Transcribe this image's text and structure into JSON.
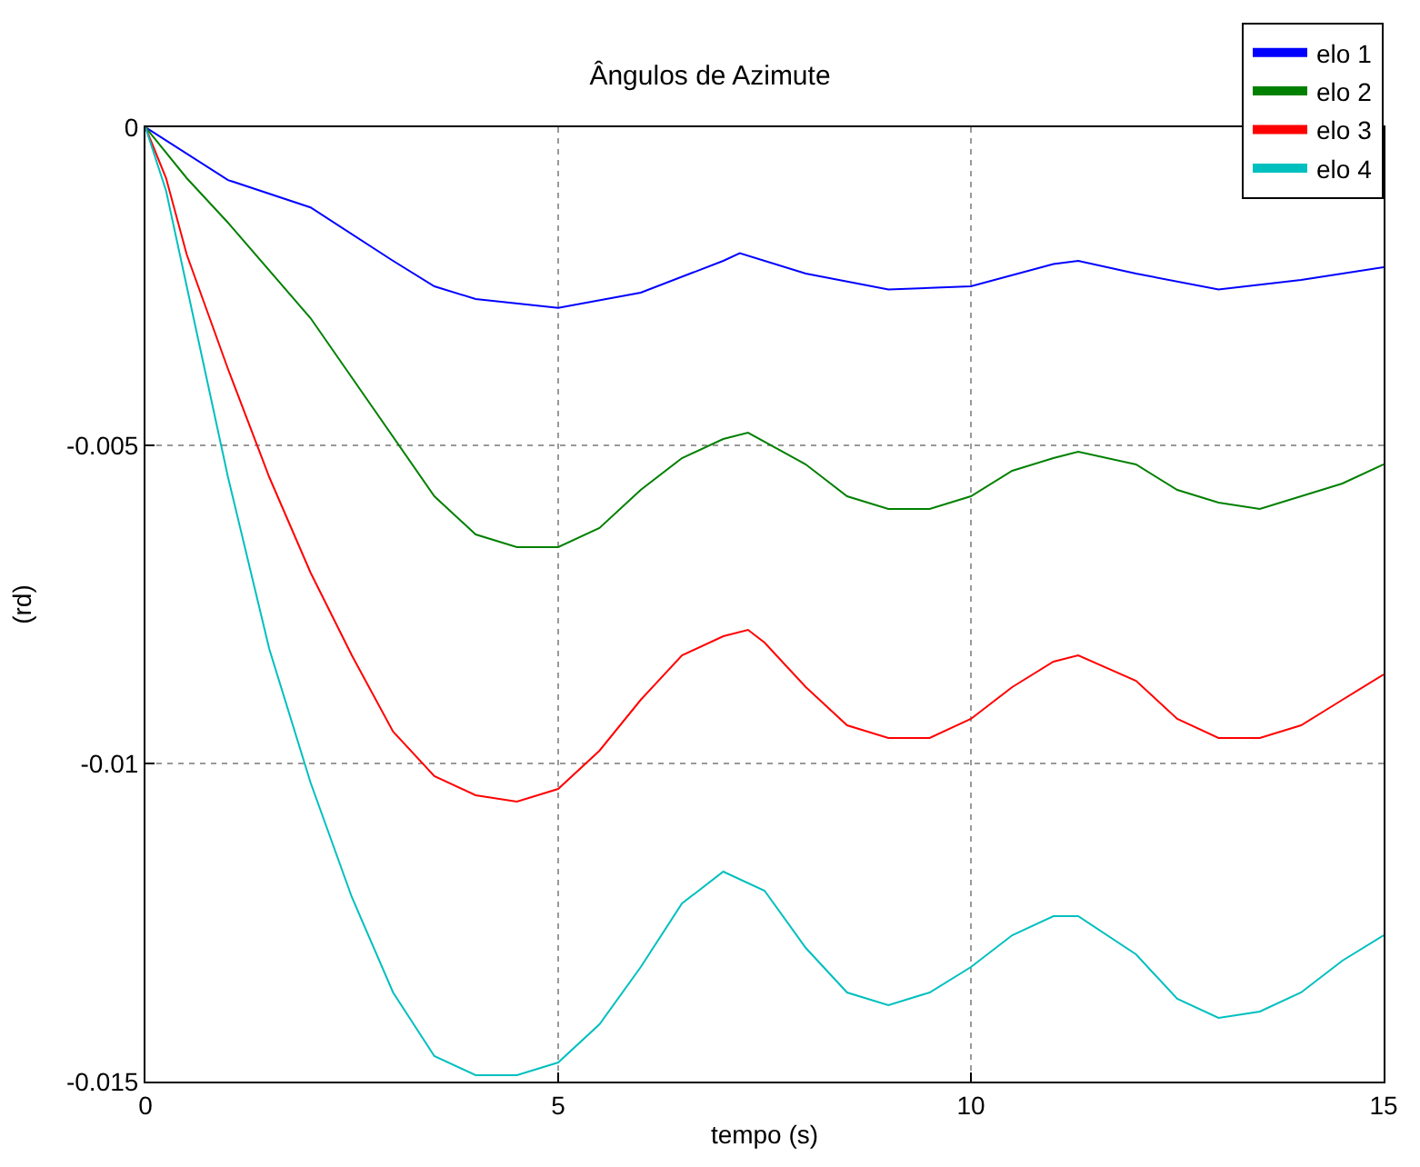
{
  "chart_data": {
    "type": "line",
    "title": "Ângulos de Azimute",
    "xlabel": "tempo (s)",
    "ylabel": "(rd)",
    "xlim": [
      0,
      15
    ],
    "ylim": [
      -0.015,
      0
    ],
    "xticks": [
      0,
      5,
      10,
      15
    ],
    "yticks": [
      0,
      -0.005,
      -0.01,
      -0.015
    ],
    "grid": true,
    "legend": "top right",
    "series": [
      {
        "name": "elo 1",
        "color": "#0000ff",
        "x": [
          0,
          1,
          2,
          3,
          3.5,
          4,
          5,
          6,
          7,
          7.2,
          8,
          9,
          10,
          11,
          11.3,
          12,
          13,
          14,
          15
        ],
        "values": [
          0,
          -0.00083,
          -0.00126,
          -0.0021,
          -0.0025,
          -0.0027,
          -0.00284,
          -0.0026,
          -0.0021,
          -0.00198,
          -0.0023,
          -0.00255,
          -0.0025,
          -0.00215,
          -0.0021,
          -0.0023,
          -0.00255,
          -0.0024,
          -0.0022
        ]
      },
      {
        "name": "elo 2",
        "color": "#008000",
        "x": [
          0,
          0.5,
          1,
          2,
          3.5,
          4,
          4.5,
          5,
          5.5,
          6,
          6.5,
          7,
          7.3,
          8,
          8.5,
          9,
          9.5,
          10,
          10.5,
          11,
          11.3,
          12,
          12.5,
          13,
          13.5,
          14,
          14.5,
          15
        ],
        "values": [
          0,
          -0.0008,
          -0.0015,
          -0.003,
          -0.0058,
          -0.0064,
          -0.0066,
          -0.0066,
          -0.0063,
          -0.0057,
          -0.0052,
          -0.0049,
          -0.0048,
          -0.0053,
          -0.0058,
          -0.006,
          -0.006,
          -0.0058,
          -0.0054,
          -0.0052,
          -0.0051,
          -0.0053,
          -0.0057,
          -0.0059,
          -0.006,
          -0.0058,
          -0.0056,
          -0.0053
        ]
      },
      {
        "name": "elo 3",
        "color": "#ff0000",
        "x": [
          0,
          0.25,
          0.5,
          1,
          1.5,
          2,
          2.5,
          3,
          3.5,
          4,
          4.5,
          5,
          5.5,
          6,
          6.5,
          7,
          7.3,
          7.5,
          8,
          8.5,
          9,
          9.5,
          10,
          10.5,
          11,
          11.3,
          12,
          12.5,
          13,
          13.5,
          14,
          14.5,
          15
        ],
        "values": [
          0,
          -0.0008,
          -0.002,
          -0.0038,
          -0.0055,
          -0.007,
          -0.0083,
          -0.0095,
          -0.0102,
          -0.0105,
          -0.0106,
          -0.0104,
          -0.0098,
          -0.009,
          -0.0083,
          -0.008,
          -0.0079,
          -0.0081,
          -0.0088,
          -0.0094,
          -0.0096,
          -0.0096,
          -0.0093,
          -0.0088,
          -0.0084,
          -0.0083,
          -0.0087,
          -0.0093,
          -0.0096,
          -0.0096,
          -0.0094,
          -0.009,
          -0.0086
        ]
      },
      {
        "name": "elo 4",
        "color": "#00bfbf",
        "x": [
          0,
          0.25,
          0.5,
          1,
          1.5,
          2,
          2.5,
          3,
          3.5,
          4,
          4.5,
          5,
          5.5,
          6,
          6.5,
          7,
          7.5,
          8,
          8.5,
          9,
          9.5,
          10,
          10.5,
          11,
          11.3,
          12,
          12.5,
          13,
          13.5,
          14,
          14.5,
          15
        ],
        "values": [
          0,
          -0.001,
          -0.0025,
          -0.0055,
          -0.0082,
          -0.0103,
          -0.0121,
          -0.0136,
          -0.0146,
          -0.0149,
          -0.0149,
          -0.0147,
          -0.0141,
          -0.0132,
          -0.0122,
          -0.0117,
          -0.012,
          -0.0129,
          -0.0136,
          -0.0138,
          -0.0136,
          -0.0132,
          -0.0127,
          -0.0124,
          -0.0124,
          -0.013,
          -0.0137,
          -0.014,
          -0.0139,
          -0.0136,
          -0.0131,
          -0.0127
        ]
      }
    ]
  }
}
